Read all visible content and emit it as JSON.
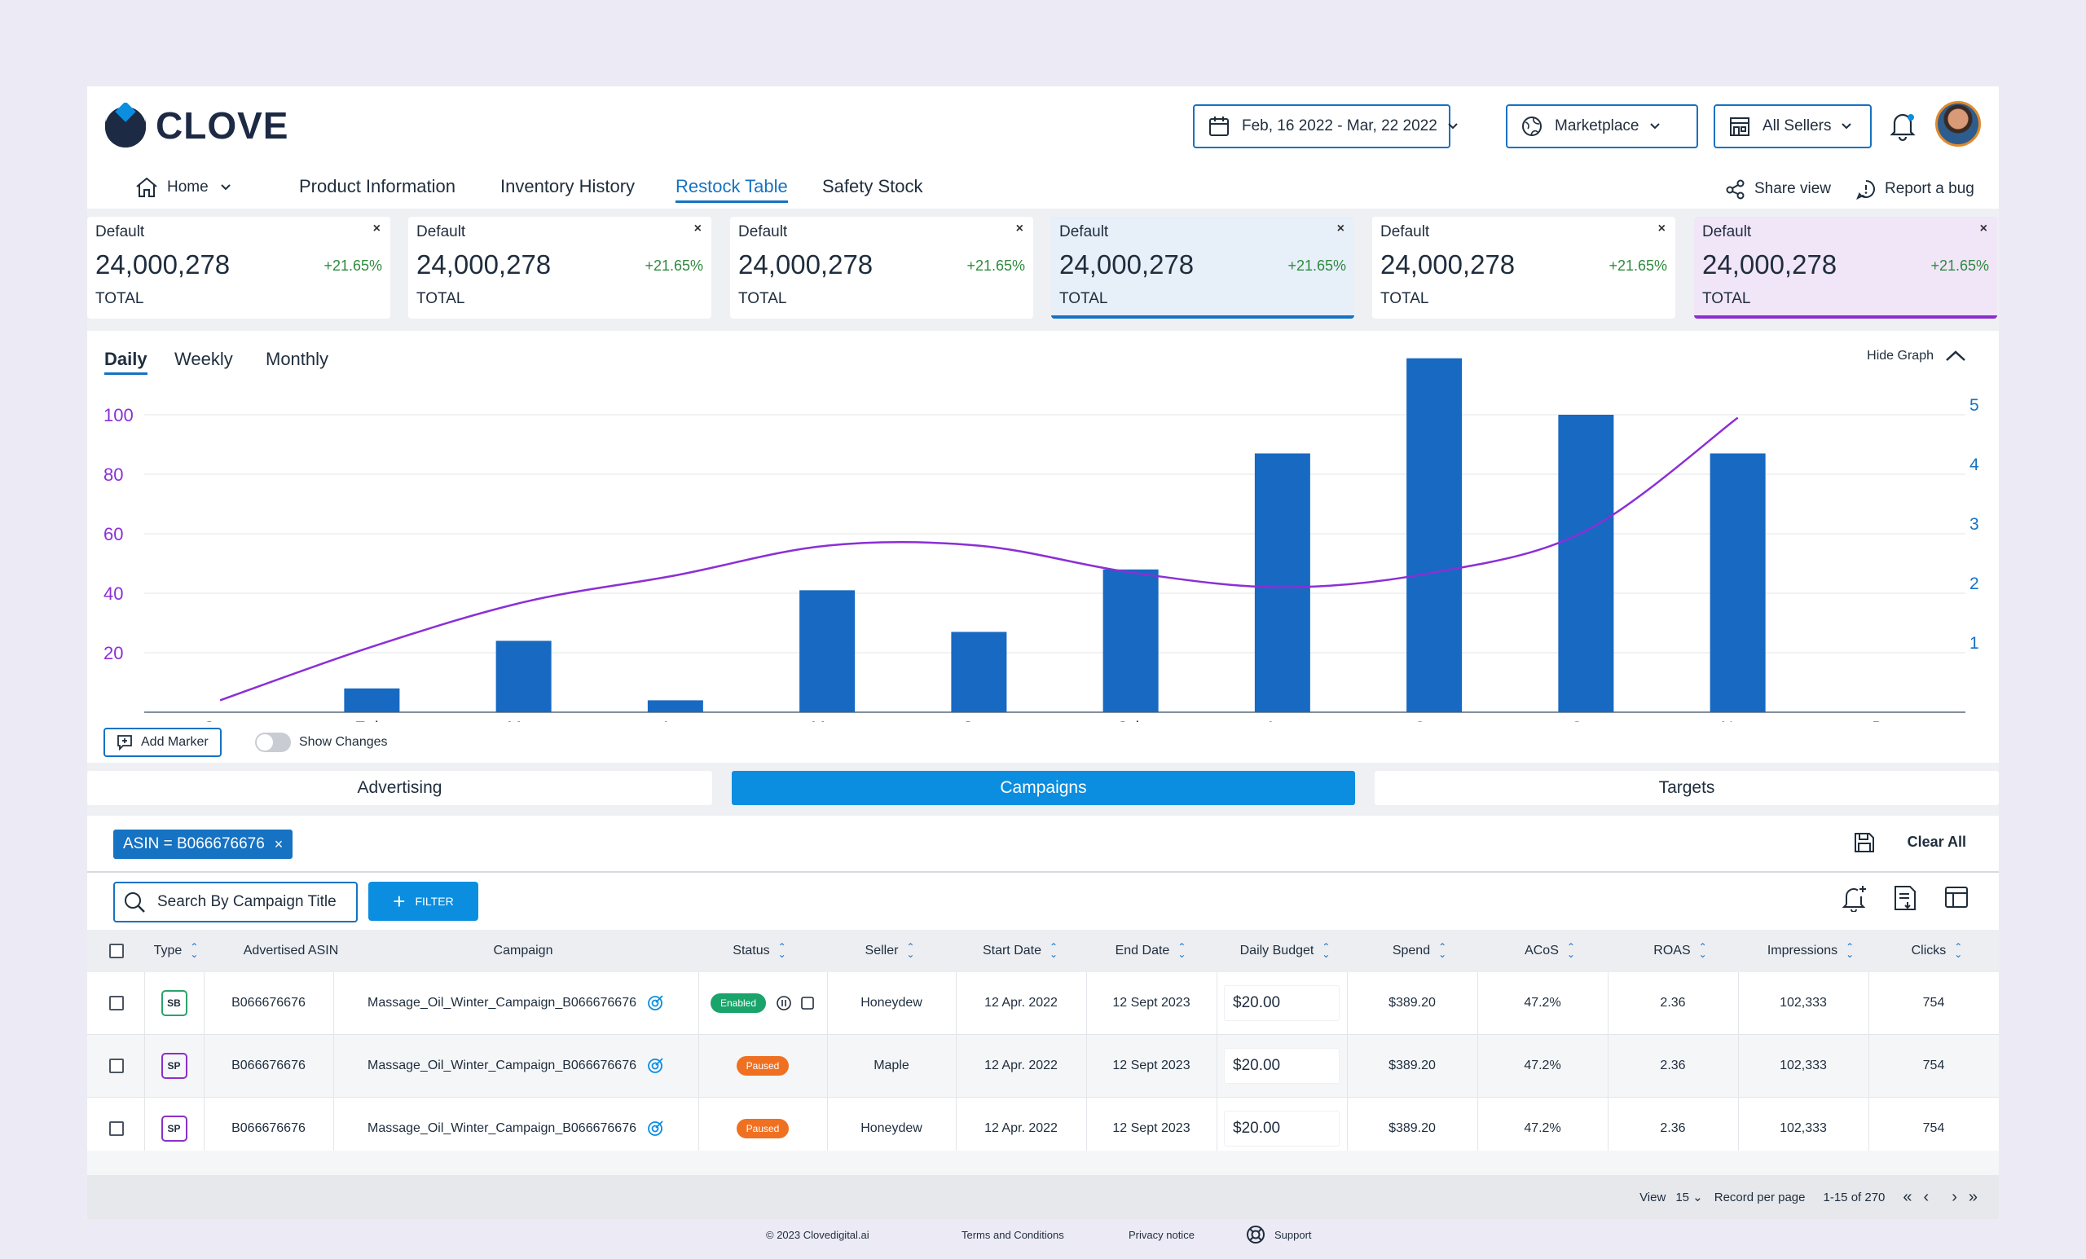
{
  "app": {
    "name": "CLOVE"
  },
  "header": {
    "date_range": "Feb, 16 2022 - Mar, 22 2022",
    "marketplace": "Marketplace",
    "sellers": "All Sellers"
  },
  "nav": {
    "home": "Home",
    "tabs": [
      "Product Information",
      "Inventory History",
      "Restock Table",
      "Safety Stock"
    ],
    "active_tab": "Restock Table",
    "share_view": "Share view",
    "report_bug": "Report a bug"
  },
  "kpis": [
    {
      "label": "Default",
      "value": "24,000,278",
      "delta": "+21.65%",
      "sub": "TOTAL",
      "highlight": "none"
    },
    {
      "label": "Default",
      "value": "24,000,278",
      "delta": "+21.65%",
      "sub": "TOTAL",
      "highlight": "none"
    },
    {
      "label": "Default",
      "value": "24,000,278",
      "delta": "+21.65%",
      "sub": "TOTAL",
      "highlight": "none"
    },
    {
      "label": "Default",
      "value": "24,000,278",
      "delta": "+21.65%",
      "sub": "TOTAL",
      "highlight": "blue"
    },
    {
      "label": "Default",
      "value": "24,000,278",
      "delta": "+21.65%",
      "sub": "TOTAL",
      "highlight": "none"
    },
    {
      "label": "Default",
      "value": "24,000,278",
      "delta": "+21.65%",
      "sub": "TOTAL",
      "highlight": "purple"
    }
  ],
  "kpi_close": "×",
  "graph": {
    "tabs": [
      "Daily",
      "Weekly",
      "Monthly"
    ],
    "active_tab": "Daily",
    "hide_label": "Hide Graph",
    "add_marker": "Add Marker",
    "show_changes": "Show Changes",
    "show_changes_on": false
  },
  "chart_data": {
    "type": "bar",
    "categories": [
      "Jan.",
      "Feb.",
      "Mar.",
      "Apr.",
      "May",
      "Jun.",
      "Jul.",
      "Aug.",
      "Sept.",
      "Oct.",
      "Nov.",
      "Dec."
    ],
    "series": [
      {
        "type": "bar",
        "axis": "left",
        "color": "#1769c1",
        "values": [
          null,
          8,
          24,
          4,
          41,
          27,
          48,
          87,
          119,
          100,
          87,
          null
        ]
      },
      {
        "type": "line",
        "axis": "left",
        "color": "#8b2fd6",
        "values": [
          4,
          22,
          37,
          46,
          56,
          56,
          47,
          42,
          47,
          61,
          99,
          null
        ]
      }
    ],
    "yticks_left": [
      20,
      40,
      60,
      80,
      100
    ],
    "yticks_right": [
      1,
      2,
      3,
      4,
      5
    ],
    "ylim": [
      0,
      120
    ],
    "left_axis_color": "#8b2fd6",
    "right_axis_color": "#1672c2",
    "grid": true
  },
  "section_tabs": [
    "Advertising",
    "Campaigns",
    "Targets"
  ],
  "active_section": "Campaigns",
  "filters": {
    "chip": "ASIN = B066676676",
    "chip_close": "×",
    "clear_all": "Clear All",
    "search_placeholder": "Search By Campaign Title",
    "filter_button": "FILTER"
  },
  "table": {
    "columns": [
      "Type",
      "Advertised ASIN",
      "Campaign",
      "Status",
      "Seller",
      "Start Date",
      "End Date",
      "Daily Budget",
      "Spend",
      "ACoS",
      "ROAS",
      "Impressions",
      "Clicks"
    ],
    "rows": [
      {
        "type": "SB",
        "asin": "B066676676",
        "campaign": "Massage_Oil_Winter_Campaign_B066676676",
        "status": "Enabled",
        "seller": "Honeydew",
        "start": "12 Apr. 2022",
        "end": "12 Sept 2023",
        "budget": "$20.00",
        "spend": "$389.20",
        "acos": "47.2%",
        "roas": "2.36",
        "impressions": "102,333",
        "clicks": "754"
      },
      {
        "type": "SP",
        "asin": "B066676676",
        "campaign": "Massage_Oil_Winter_Campaign_B066676676",
        "status": "Paused",
        "seller": "Maple",
        "start": "12 Apr. 2022",
        "end": "12 Sept 2023",
        "budget": "$20.00",
        "spend": "$389.20",
        "acos": "47.2%",
        "roas": "2.36",
        "impressions": "102,333",
        "clicks": "754"
      },
      {
        "type": "SP",
        "asin": "B066676676",
        "campaign": "Massage_Oil_Winter_Campaign_B066676676",
        "status": "Paused",
        "seller": "Honeydew",
        "start": "12 Apr. 2022",
        "end": "12 Sept 2023",
        "budget": "$20.00",
        "spend": "$389.20",
        "acos": "47.2%",
        "roas": "2.36",
        "impressions": "102,333",
        "clicks": "754"
      }
    ]
  },
  "pagination": {
    "view_label": "View",
    "per_page": "15",
    "record_label": "Record per page",
    "range": "1-15 of 270"
  },
  "footer": {
    "copyright": "© 2023 Clovedigital.ai",
    "terms": "Terms and Conditions",
    "privacy": "Privacy notice",
    "support": "Support"
  },
  "colors": {
    "primary": "#1672c2",
    "accent": "#0b8ee0",
    "enabled": "#1aa36a",
    "paused": "#f07021",
    "line": "#8b2fd6"
  }
}
